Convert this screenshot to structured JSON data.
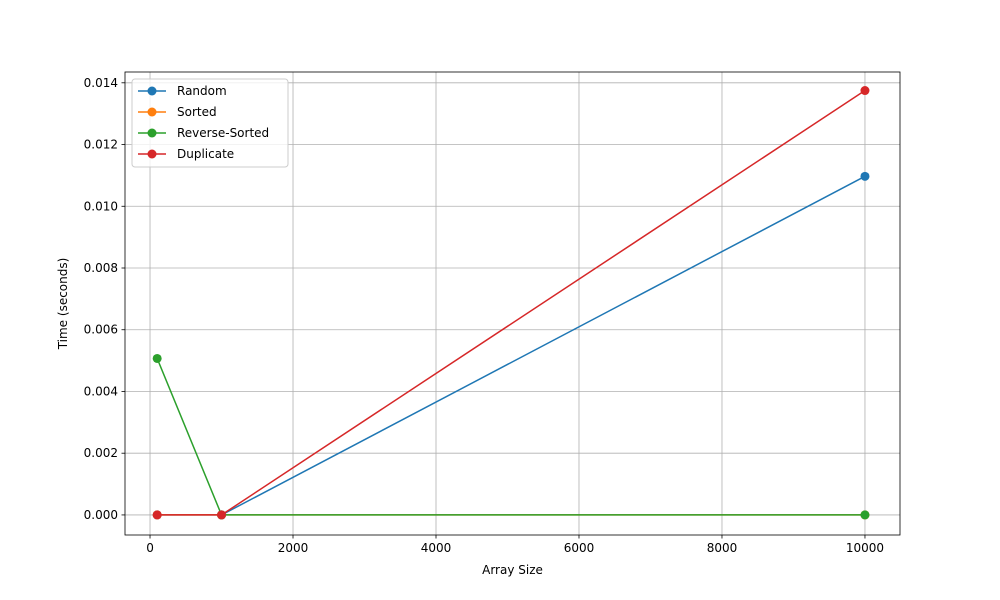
{
  "chart_data": {
    "type": "line",
    "xlabel": "Array Size",
    "ylabel": "Time (seconds)",
    "x": [
      100,
      1000,
      10000
    ],
    "xlim": [
      -350,
      10490
    ],
    "ylim": [
      -0.00065,
      0.01435
    ],
    "xticks": [
      0,
      2000,
      4000,
      6000,
      8000,
      10000
    ],
    "xtick_labels": [
      "0",
      "2000",
      "4000",
      "6000",
      "8000",
      "10000"
    ],
    "yticks": [
      0.0,
      0.002,
      0.004,
      0.006,
      0.008,
      0.01,
      0.012,
      0.014
    ],
    "ytick_labels": [
      "0.000",
      "0.002",
      "0.004",
      "0.006",
      "0.008",
      "0.010",
      "0.012",
      "0.014"
    ],
    "grid": true,
    "legend_position": "top-left",
    "series": [
      {
        "name": "Random",
        "color": "#1f77b4",
        "values": [
          0.0,
          0.0,
          0.01097
        ]
      },
      {
        "name": "Sorted",
        "color": "#ff7f0e",
        "values": [
          0.0,
          0.0,
          0.0
        ]
      },
      {
        "name": "Reverse-Sorted",
        "color": "#2ca02c",
        "values": [
          0.00507,
          0.0,
          0.0
        ]
      },
      {
        "name": "Duplicate",
        "color": "#d62728",
        "values": [
          0.0,
          0.0,
          0.01375
        ]
      }
    ]
  }
}
